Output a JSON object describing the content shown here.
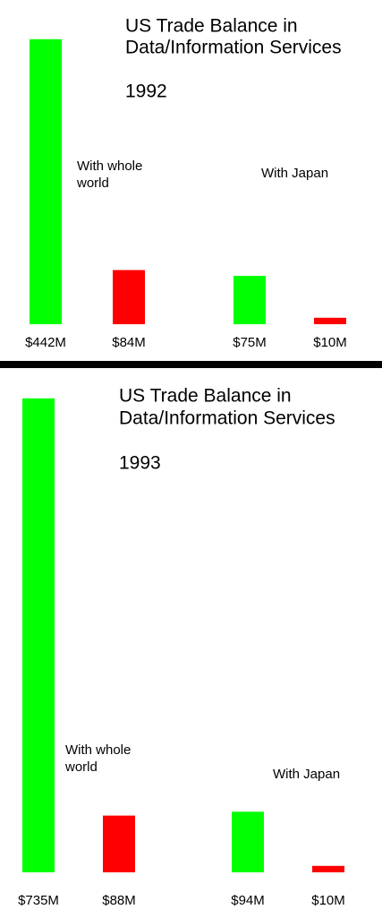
{
  "chart_data": [
    {
      "type": "bar",
      "title": [
        "US Trade Balance in",
        "Data/Information Services"
      ],
      "subtitle": "1992",
      "values": [
        442,
        84,
        75,
        10
      ],
      "value_labels": [
        "$442M",
        "$84M",
        "$75M",
        "$10M"
      ],
      "colors": [
        "#00ff00",
        "#ff0000",
        "#00ff00",
        "#ff0000"
      ],
      "annotations": [
        [
          "With whole",
          "world"
        ],
        [
          "With Japan"
        ]
      ]
    },
    {
      "type": "bar",
      "title": [
        "US Trade Balance in",
        "Data/Information Services"
      ],
      "subtitle": "1993",
      "values": [
        735,
        88,
        94,
        10
      ],
      "value_labels": [
        "$735M",
        "$88M",
        "$94M",
        "$10M"
      ],
      "colors": [
        "#00ff00",
        "#ff0000",
        "#00ff00",
        "#ff0000"
      ],
      "annotations": [
        [
          "With whole",
          "world"
        ],
        [
          "With Japan"
        ]
      ]
    }
  ]
}
